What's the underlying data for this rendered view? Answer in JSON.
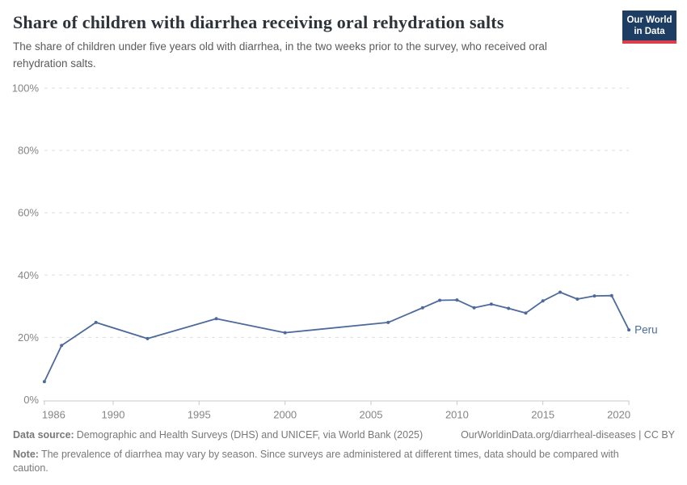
{
  "header": {
    "logo": {
      "line1": "Our World",
      "line2": "in Data"
    }
  },
  "chart_data": {
    "type": "line",
    "title": "Share of children with diarrhea receiving oral rehydration salts",
    "subtitle": "The share of children under five years old with diarrhea, in the two weeks prior to the survey, who received oral rehydration salts.",
    "xlabel": "",
    "ylabel": "",
    "xlim": [
      1986,
      2020
    ],
    "ylim": [
      0,
      100
    ],
    "grid": "horizontal-dashed",
    "legend_position": "end-of-line-label",
    "yticks": [
      0,
      20,
      40,
      60,
      80,
      100
    ],
    "ytick_suffix": "%",
    "xticks": [
      1986,
      1990,
      1995,
      2000,
      2005,
      2010,
      2015,
      2020
    ],
    "series": [
      {
        "name": "Peru",
        "color": "#4c6a9c",
        "x": [
          1986,
          1987,
          1989,
          1992,
          1996,
          2000,
          2006,
          2008,
          2009,
          2010,
          2011,
          2012,
          2013,
          2014,
          2015,
          2016,
          2017,
          2018,
          2019,
          2020
        ],
        "values": [
          5.8,
          17.4,
          24.8,
          19.6,
          26.0,
          21.5,
          24.8,
          29.5,
          31.9,
          32.0,
          29.5,
          30.7,
          29.3,
          27.8,
          31.7,
          34.5,
          32.3,
          33.3,
          33.4,
          22.4
        ]
      }
    ]
  },
  "footer": {
    "source_label": "Data source:",
    "source_text": "Demographic and Health Surveys (DHS) and UNICEF, via World Bank (2025)",
    "url_text": "OurWorldinData.org/diarrheal-diseases | CC BY",
    "note_label": "Note:",
    "note_text": "The prevalence of diarrhea may vary by season. Since surveys are administered at different times, data should be compared with caution."
  }
}
